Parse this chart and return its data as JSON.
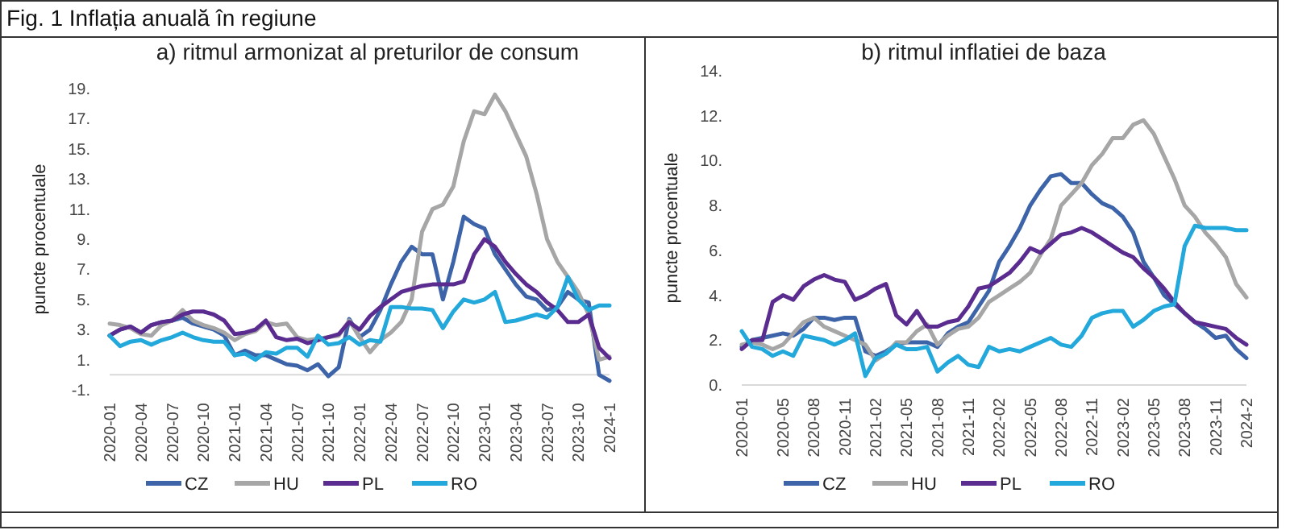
{
  "chart_data": [
    {
      "type": "line",
      "title": "a) ritmul armonizat al preturilor de consum",
      "ylabel": "puncte procentuale",
      "annotations": [
        "Fig. 1 Inflația anuală în regiune"
      ],
      "categories": [
        "2020-01",
        null,
        null,
        "2020-04",
        null,
        null,
        "2020-07",
        null,
        null,
        "2020-10",
        null,
        null,
        "2021-01",
        null,
        null,
        "2021-04",
        null,
        null,
        "2021-07",
        null,
        null,
        "2021-10",
        null,
        null,
        "2022-01",
        null,
        null,
        "2022-04",
        null,
        null,
        "2022-07",
        null,
        null,
        "2022-10",
        null,
        null,
        "2023-01",
        null,
        null,
        "2023-04",
        null,
        null,
        "2023-07",
        null,
        null,
        "2023-10",
        null,
        null,
        "2024-1"
      ],
      "ylim": [
        -1,
        19
      ],
      "yticks": [
        {
          "value": -1,
          "label": "-1."
        },
        {
          "value": 1,
          "label": "1."
        },
        {
          "value": 3,
          "label": "3."
        },
        {
          "value": 5,
          "label": "5."
        },
        {
          "value": 7,
          "label": "7."
        },
        {
          "value": 9,
          "label": "9."
        },
        {
          "value": 11,
          "label": "11."
        },
        {
          "value": 13,
          "label": "13."
        },
        {
          "value": 15,
          "label": "15."
        },
        {
          "value": 17,
          "label": "17."
        },
        {
          "value": 19,
          "label": "19."
        }
      ],
      "legend": "bottom",
      "series": [
        {
          "name": "CZ",
          "color": "#3d64a8",
          "values": [
            2.6,
            3.0,
            3.2,
            2.8,
            3.3,
            3.5,
            3.6,
            3.8,
            3.4,
            3.2,
            3.0,
            2.6,
            1.3,
            1.6,
            1.3,
            1.3,
            1.0,
            0.7,
            0.6,
            0.3,
            0.7,
            -0.1,
            0.5,
            3.7,
            2.5,
            3.0,
            4.3,
            6.0,
            7.5,
            8.5,
            8.0,
            8.0,
            5.0,
            7.5,
            10.5,
            10.0,
            9.7,
            8.0,
            7.0,
            6.0,
            5.2,
            5.0,
            4.3,
            4.5,
            5.5,
            5.0,
            4.8,
            0.0,
            -0.4
          ]
        },
        {
          "name": "HU",
          "color": "#a6a6a6",
          "values": [
            3.4,
            3.3,
            3.1,
            2.7,
            2.6,
            3.3,
            3.6,
            4.3,
            3.6,
            3.3,
            3.1,
            2.8,
            2.3,
            2.7,
            2.9,
            3.5,
            3.3,
            3.4,
            2.5,
            2.3,
            2.4,
            2.5,
            2.6,
            3.6,
            2.5,
            1.5,
            2.3,
            2.8,
            3.5,
            5.0,
            9.5,
            11.0,
            11.3,
            12.5,
            15.5,
            17.5,
            17.3,
            18.6,
            17.5,
            16.0,
            14.5,
            12.0,
            9.0,
            7.5,
            6.5,
            5.5,
            4.0,
            1.0,
            1.2
          ]
        },
        {
          "name": "PL",
          "color": "#5b2c8f",
          "values": [
            2.6,
            3.0,
            3.2,
            2.8,
            3.3,
            3.5,
            3.6,
            4.0,
            4.2,
            4.2,
            4.0,
            3.6,
            2.7,
            2.8,
            3.0,
            3.6,
            2.5,
            2.3,
            2.4,
            2.1,
            2.3,
            2.5,
            2.7,
            3.5,
            3.0,
            3.9,
            4.5,
            5.0,
            5.5,
            5.7,
            5.9,
            6.0,
            6.0,
            6.0,
            6.2,
            8.0,
            9.0,
            8.5,
            7.5,
            6.7,
            6.0,
            5.5,
            4.8,
            4.3,
            3.5,
            3.5,
            4.0,
            1.8,
            1.1
          ]
        },
        {
          "name": "RO",
          "color": "#22a8da",
          "values": [
            2.6,
            1.9,
            2.2,
            2.3,
            2.0,
            2.3,
            2.5,
            2.8,
            2.5,
            2.3,
            2.2,
            2.2,
            1.3,
            1.4,
            1.0,
            1.5,
            1.4,
            1.8,
            1.8,
            1.2,
            2.6,
            2.0,
            2.1,
            2.5,
            2.0,
            2.3,
            2.2,
            4.5,
            4.5,
            4.4,
            4.4,
            4.3,
            3.1,
            4.2,
            5.0,
            4.8,
            5.0,
            5.5,
            3.5,
            3.6,
            3.8,
            4.0,
            3.8,
            4.5,
            6.5,
            5.0,
            4.3,
            4.6,
            4.6
          ]
        }
      ]
    },
    {
      "type": "line",
      "title": "b) ritmul inflatiei de baza",
      "ylabel": "puncte procentuale",
      "categories": [
        "2020-01",
        null,
        null,
        null,
        "2020-05",
        null,
        null,
        "2020-08",
        null,
        null,
        "2020-11",
        null,
        null,
        "2021-02",
        null,
        null,
        "2021-05",
        null,
        null,
        "2021-08",
        null,
        null,
        "2021-11",
        null,
        null,
        "2022-02",
        null,
        null,
        "2022-05",
        null,
        null,
        "2022-08",
        null,
        null,
        "2022-11",
        null,
        null,
        "2023-02",
        null,
        null,
        "2023-05",
        null,
        null,
        "2023-08",
        null,
        null,
        "2023-11",
        null,
        null,
        "2024-2"
      ],
      "ylim": [
        0,
        14
      ],
      "yticks": [
        {
          "value": 0,
          "label": "0."
        },
        {
          "value": 2,
          "label": "2."
        },
        {
          "value": 4,
          "label": "4."
        },
        {
          "value": 6,
          "label": "6."
        },
        {
          "value": 8,
          "label": "8."
        },
        {
          "value": 10,
          "label": "10."
        },
        {
          "value": 12,
          "label": "12."
        },
        {
          "value": 14,
          "label": "14."
        }
      ],
      "legend": "bottom",
      "series": [
        {
          "name": "CZ",
          "color": "#3d64a8",
          "values": [
            1.7,
            2.0,
            2.1,
            2.2,
            2.3,
            2.2,
            2.5,
            3.0,
            3.0,
            2.9,
            3.0,
            3.0,
            1.5,
            1.3,
            1.5,
            1.8,
            1.9,
            1.9,
            1.9,
            1.7,
            2.3,
            2.6,
            2.8,
            3.5,
            4.2,
            5.5,
            6.2,
            7.0,
            8.0,
            8.7,
            9.3,
            9.4,
            9.0,
            9.0,
            8.5,
            8.1,
            7.9,
            7.5,
            6.8,
            5.5,
            4.8,
            4.0,
            3.6,
            3.2,
            2.8,
            2.5,
            2.1,
            2.2,
            1.6,
            1.2
          ]
        },
        {
          "name": "HU",
          "color": "#a6a6a6",
          "values": [
            1.8,
            1.9,
            1.8,
            1.6,
            1.8,
            2.3,
            2.8,
            3.0,
            2.6,
            2.4,
            2.2,
            2.0,
            1.8,
            1.1,
            1.4,
            1.9,
            1.9,
            2.4,
            2.7,
            1.8,
            2.2,
            2.5,
            2.6,
            3.0,
            3.7,
            4.0,
            4.3,
            4.6,
            5.0,
            5.8,
            6.5,
            8.0,
            8.5,
            9.0,
            9.8,
            10.3,
            11.0,
            11.0,
            11.6,
            11.8,
            11.2,
            10.2,
            9.2,
            8.0,
            7.5,
            6.8,
            6.3,
            5.7,
            4.5,
            3.9
          ]
        },
        {
          "name": "PL",
          "color": "#5b2c8f",
          "values": [
            1.6,
            2.0,
            2.0,
            3.7,
            4.0,
            3.8,
            4.4,
            4.7,
            4.9,
            4.7,
            4.6,
            3.8,
            4.0,
            4.3,
            4.5,
            3.1,
            2.7,
            3.3,
            2.6,
            2.6,
            2.8,
            2.9,
            3.5,
            4.3,
            4.4,
            4.7,
            5.0,
            5.5,
            6.1,
            5.9,
            6.3,
            6.7,
            6.8,
            7.0,
            6.8,
            6.5,
            6.2,
            5.9,
            5.7,
            5.2,
            4.8,
            4.3,
            3.7,
            3.2,
            2.8,
            2.7,
            2.6,
            2.5,
            2.1,
            1.8
          ]
        },
        {
          "name": "RO",
          "color": "#22a8da",
          "values": [
            2.4,
            1.7,
            1.6,
            1.3,
            1.5,
            1.3,
            2.2,
            2.1,
            2.0,
            1.8,
            2.0,
            2.3,
            0.4,
            1.2,
            1.4,
            1.8,
            1.6,
            1.6,
            1.7,
            0.6,
            1.0,
            1.3,
            0.9,
            0.8,
            1.7,
            1.5,
            1.6,
            1.5,
            1.7,
            1.9,
            2.1,
            1.8,
            1.7,
            2.2,
            3.0,
            3.2,
            3.3,
            3.3,
            2.6,
            2.9,
            3.3,
            3.5,
            3.6,
            6.2,
            7.1,
            7.0,
            7.0,
            7.0,
            6.9,
            6.9
          ]
        }
      ]
    }
  ]
}
